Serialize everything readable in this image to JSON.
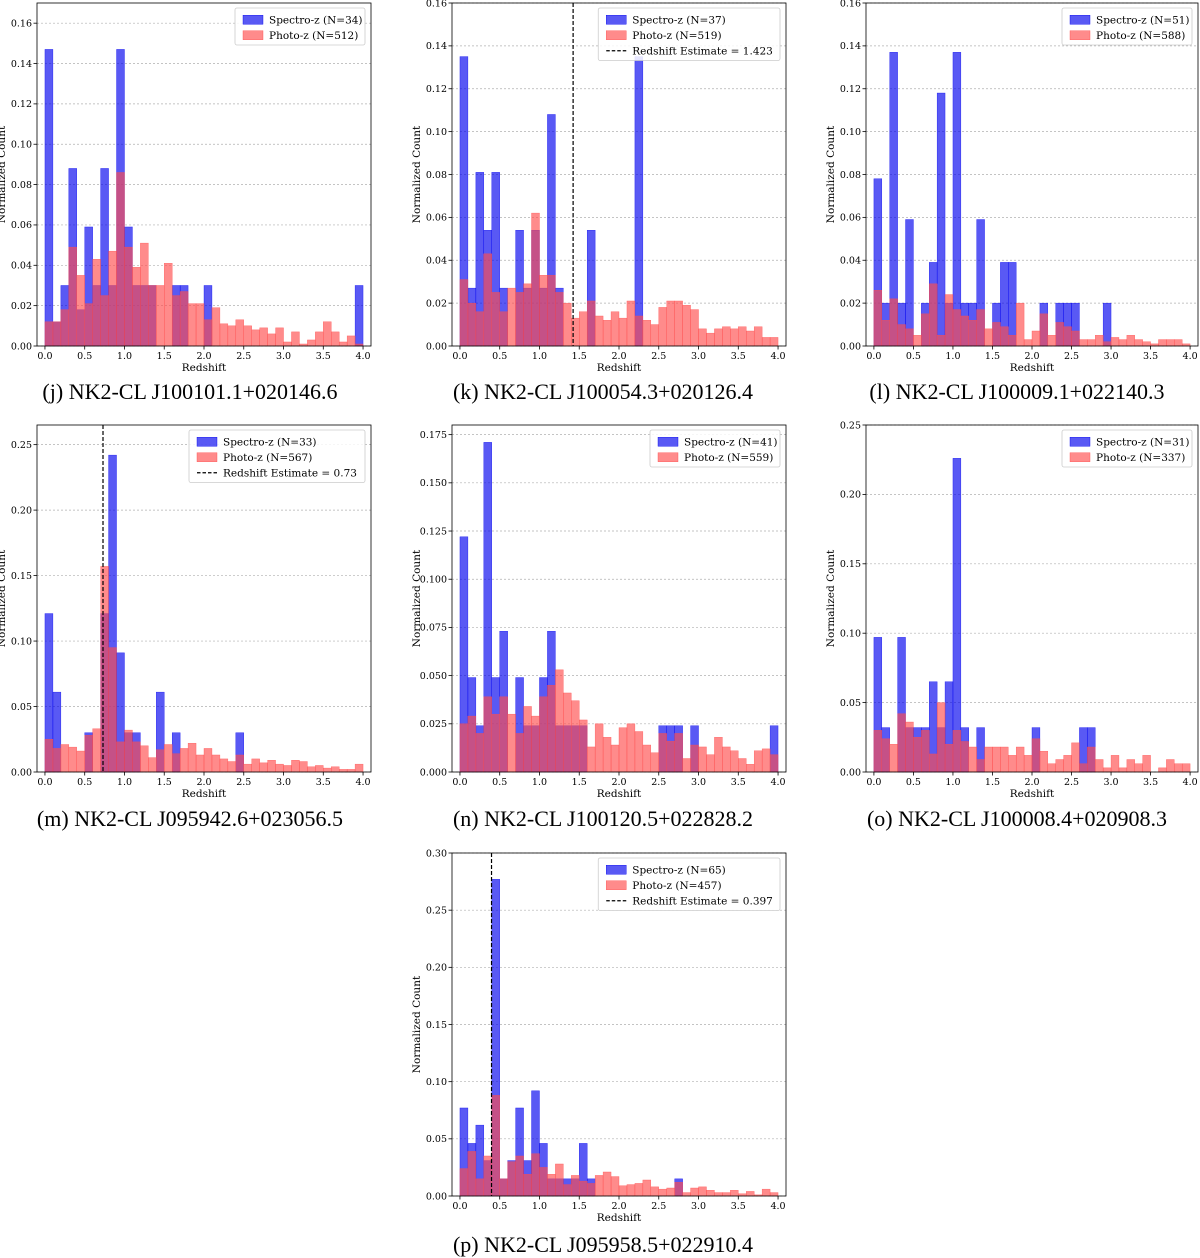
{
  "chart_data": [
    {
      "type": "bar",
      "caption": "(j) NK2-CL J100101.1+020146.6",
      "xlabel": "Redshift",
      "ylabel": "Normalized Count",
      "xlim": [
        -0.1,
        4.1
      ],
      "ylim": [
        0,
        0.17
      ],
      "xticks": [
        "0.0",
        "0.5",
        "1.0",
        "1.5",
        "2.0",
        "2.5",
        "3.0",
        "3.5",
        "4.0"
      ],
      "yticks": [
        "0.00",
        "0.02",
        "0.04",
        "0.06",
        "0.08",
        "0.10",
        "0.12",
        "0.14",
        "0.16"
      ],
      "grid": "horizontal",
      "legend_position": "top-right",
      "series": [
        {
          "name": "Spectro-z (N=34)",
          "color": "#0000ee",
          "bin_width": 0.1,
          "bin_start": 0.0,
          "values": [
            0.147,
            0.012,
            0.03,
            0.088,
            0.018,
            0.059,
            0.03,
            0.088,
            0.03,
            0.147,
            0.059,
            0.03,
            0.03,
            0.03,
            0.0,
            0.0,
            0.03,
            0.03,
            0.0,
            0.0,
            0.03,
            0.0,
            0.0,
            0.0,
            0.0,
            0.0,
            0.0,
            0.0,
            0.0,
            0.0,
            0.0,
            0.0,
            0.0,
            0.0,
            0.0,
            0.0,
            0.0,
            0.0,
            0.0,
            0.03
          ]
        },
        {
          "name": "Photo-z (N=512)",
          "color": "#ff4d4d",
          "bin_width": 0.1,
          "bin_start": 0.0,
          "values": [
            0.012,
            0.012,
            0.018,
            0.049,
            0.035,
            0.021,
            0.043,
            0.025,
            0.047,
            0.086,
            0.049,
            0.039,
            0.051,
            0.03,
            0.03,
            0.041,
            0.025,
            0.027,
            0.021,
            0.021,
            0.013,
            0.019,
            0.011,
            0.01,
            0.013,
            0.01,
            0.008,
            0.009,
            0.006,
            0.009,
            0.002,
            0.007,
            0.001,
            0.003,
            0.007,
            0.012,
            0.007,
            0.002,
            0.005,
            0.001
          ]
        }
      ]
    },
    {
      "type": "bar",
      "caption": "(k) NK2-CL J100054.3+020126.4",
      "xlabel": "Redshift",
      "ylabel": "Normalized Count",
      "xlim": [
        -0.1,
        4.1
      ],
      "ylim": [
        0,
        0.16
      ],
      "xticks": [
        "0.0",
        "0.5",
        "1.0",
        "1.5",
        "2.0",
        "2.5",
        "3.0",
        "3.5",
        "4.0"
      ],
      "yticks": [
        "0.00",
        "0.02",
        "0.04",
        "0.06",
        "0.08",
        "0.10",
        "0.12",
        "0.14",
        "0.16"
      ],
      "grid": "horizontal",
      "legend_position": "top-right",
      "vline": {
        "x": 1.423,
        "label": "Redshift Estimate = 1.423"
      },
      "series": [
        {
          "name": "Spectro-z (N=37)",
          "color": "#0000ee",
          "bin_width": 0.1,
          "bin_start": 0.0,
          "values": [
            0.135,
            0.027,
            0.081,
            0.054,
            0.081,
            0.027,
            0.0,
            0.054,
            0.027,
            0.054,
            0.027,
            0.108,
            0.027,
            0.0,
            0.0,
            0.0,
            0.054,
            0.0,
            0.0,
            0.0,
            0.0,
            0.0,
            0.135,
            0.0,
            0.0,
            0.0,
            0.0,
            0.0,
            0.0,
            0.0,
            0.0,
            0.0,
            0.0,
            0.0,
            0.0,
            0.0,
            0.0,
            0.0,
            0.0,
            0.0
          ]
        },
        {
          "name": "Photo-z (N=519)",
          "color": "#ff4d4d",
          "bin_width": 0.1,
          "bin_start": 0.0,
          "values": [
            0.031,
            0.02,
            0.016,
            0.043,
            0.025,
            0.016,
            0.027,
            0.025,
            0.029,
            0.062,
            0.033,
            0.033,
            0.025,
            0.02,
            0.013,
            0.016,
            0.021,
            0.014,
            0.012,
            0.016,
            0.013,
            0.021,
            0.014,
            0.012,
            0.01,
            0.018,
            0.021,
            0.021,
            0.019,
            0.017,
            0.008,
            0.006,
            0.008,
            0.009,
            0.008,
            0.009,
            0.007,
            0.009,
            0.004,
            0.004
          ]
        }
      ]
    },
    {
      "type": "bar",
      "caption": "(l) NK2-CL J100009.1+022140.3",
      "xlabel": "Redshift",
      "ylabel": "Normalized Count",
      "xlim": [
        -0.1,
        4.1
      ],
      "ylim": [
        0,
        0.16
      ],
      "xticks": [
        "0.0",
        "0.5",
        "1.0",
        "1.5",
        "2.0",
        "2.5",
        "3.0",
        "3.5",
        "4.0"
      ],
      "yticks": [
        "0.00",
        "0.02",
        "0.04",
        "0.06",
        "0.08",
        "0.10",
        "0.12",
        "0.14",
        "0.16"
      ],
      "grid": "horizontal",
      "legend_position": "top-right",
      "series": [
        {
          "name": "Spectro-z (N=51)",
          "color": "#0000ee",
          "bin_width": 0.1,
          "bin_start": 0.0,
          "values": [
            0.078,
            0.02,
            0.137,
            0.02,
            0.059,
            0.0,
            0.02,
            0.039,
            0.118,
            0.02,
            0.137,
            0.02,
            0.02,
            0.059,
            0.0,
            0.02,
            0.039,
            0.039,
            0.0,
            0.0,
            0.0,
            0.02,
            0.0,
            0.02,
            0.02,
            0.02,
            0.0,
            0.0,
            0.0,
            0.02,
            0.0,
            0.0,
            0.0,
            0.0,
            0.0,
            0.0,
            0.0,
            0.0,
            0.0,
            0.0
          ]
        },
        {
          "name": "Photo-z (N=588)",
          "color": "#ff4d4d",
          "bin_width": 0.1,
          "bin_start": 0.0,
          "values": [
            0.026,
            0.012,
            0.022,
            0.01,
            0.008,
            0.005,
            0.015,
            0.029,
            0.005,
            0.024,
            0.017,
            0.014,
            0.012,
            0.017,
            0.008,
            0.011,
            0.009,
            0.005,
            0.02,
            0.003,
            0.007,
            0.015,
            0.005,
            0.011,
            0.009,
            0.007,
            0.003,
            0.003,
            0.005,
            0.002,
            0.004,
            0.003,
            0.005,
            0.003,
            0.002,
            0.001,
            0.003,
            0.003,
            0.003,
            0.001
          ]
        }
      ]
    },
    {
      "type": "bar",
      "caption": "(m) NK2-CL J095942.6+023056.5",
      "xlabel": "Redshift",
      "ylabel": "Normalized Count",
      "xlim": [
        -0.1,
        4.1
      ],
      "ylim": [
        0,
        0.265
      ],
      "xticks": [
        "0.0",
        "0.5",
        "1.0",
        "1.5",
        "2.0",
        "2.5",
        "3.0",
        "3.5",
        "4.0"
      ],
      "yticks": [
        "0.00",
        "0.05",
        "0.10",
        "0.15",
        "0.20",
        "0.25"
      ],
      "grid": "horizontal",
      "legend_position": "top-right",
      "vline": {
        "x": 0.73,
        "label": "Redshift Estimate = 0.73"
      },
      "series": [
        {
          "name": "Spectro-z (N=33)",
          "color": "#0000ee",
          "bin_width": 0.1,
          "bin_start": 0.0,
          "values": [
            0.121,
            0.061,
            0.0,
            0.0,
            0.0,
            0.03,
            0.0,
            0.121,
            0.242,
            0.091,
            0.03,
            0.03,
            0.0,
            0.0,
            0.061,
            0.0,
            0.03,
            0.0,
            0.0,
            0.0,
            0.0,
            0.0,
            0.0,
            0.0,
            0.03,
            0.0,
            0.0,
            0.0,
            0.0,
            0.0,
            0.0,
            0.0,
            0.0,
            0.0,
            0.0,
            0.0,
            0.0,
            0.0,
            0.0,
            0.0
          ]
        },
        {
          "name": "Photo-z (N=567)",
          "color": "#ff4d4d",
          "bin_width": 0.1,
          "bin_start": 0.0,
          "values": [
            0.025,
            0.018,
            0.021,
            0.019,
            0.016,
            0.028,
            0.033,
            0.157,
            0.095,
            0.023,
            0.032,
            0.023,
            0.02,
            0.011,
            0.017,
            0.021,
            0.014,
            0.018,
            0.022,
            0.013,
            0.018,
            0.013,
            0.01,
            0.008,
            0.013,
            0.006,
            0.01,
            0.007,
            0.009,
            0.006,
            0.005,
            0.009,
            0.008,
            0.004,
            0.005,
            0.003,
            0.004,
            0.002,
            0.002,
            0.006
          ]
        }
      ]
    },
    {
      "type": "bar",
      "caption": "(n) NK2-CL J100120.5+022828.2",
      "xlabel": "Redshift",
      "ylabel": "Normalized Count",
      "xlim": [
        -0.1,
        4.1
      ],
      "ylim": [
        0,
        0.18
      ],
      "xticks": [
        "0.0",
        "0.5",
        "1.0",
        "1.5",
        "2.0",
        "2.5",
        "3.0",
        "3.5",
        "4.0"
      ],
      "yticks": [
        "0.000",
        "0.025",
        "0.050",
        "0.075",
        "0.100",
        "0.125",
        "0.150",
        "0.175"
      ],
      "grid": "horizontal",
      "legend_position": "top-right",
      "series": [
        {
          "name": "Spectro-z (N=41)",
          "color": "#0000ee",
          "bin_width": 0.1,
          "bin_start": 0.0,
          "values": [
            0.122,
            0.049,
            0.024,
            0.171,
            0.049,
            0.073,
            0.0,
            0.049,
            0.024,
            0.024,
            0.049,
            0.073,
            0.024,
            0.024,
            0.024,
            0.024,
            0.0,
            0.0,
            0.0,
            0.0,
            0.0,
            0.0,
            0.0,
            0.0,
            0.0,
            0.024,
            0.024,
            0.024,
            0.0,
            0.024,
            0.0,
            0.0,
            0.0,
            0.0,
            0.0,
            0.0,
            0.0,
            0.0,
            0.0,
            0.024
          ]
        },
        {
          "name": "Photo-z (N=559)",
          "color": "#ff4d4d",
          "bin_width": 0.1,
          "bin_start": 0.0,
          "values": [
            0.025,
            0.029,
            0.02,
            0.039,
            0.03,
            0.039,
            0.03,
            0.02,
            0.034,
            0.029,
            0.039,
            0.045,
            0.053,
            0.041,
            0.037,
            0.027,
            0.013,
            0.025,
            0.018,
            0.014,
            0.023,
            0.025,
            0.021,
            0.014,
            0.01,
            0.02,
            0.016,
            0.02,
            0.007,
            0.014,
            0.013,
            0.009,
            0.018,
            0.013,
            0.011,
            0.007,
            0.004,
            0.011,
            0.012,
            0.009
          ]
        }
      ]
    },
    {
      "type": "bar",
      "caption": "(o) NK2-CL J100008.4+020908.3",
      "xlabel": "Redshift",
      "ylabel": "Normalized Count",
      "xlim": [
        -0.1,
        4.1
      ],
      "ylim": [
        0,
        0.25
      ],
      "xticks": [
        "0.0",
        "0.5",
        "1.0",
        "1.5",
        "2.0",
        "2.5",
        "3.0",
        "3.5",
        "4.0"
      ],
      "yticks": [
        "0.00",
        "0.05",
        "0.10",
        "0.15",
        "0.20",
        "0.25"
      ],
      "grid": "horizontal",
      "legend_position": "top-right",
      "series": [
        {
          "name": "Spectro-z (N=31)",
          "color": "#0000ee",
          "bin_width": 0.1,
          "bin_start": 0.0,
          "values": [
            0.097,
            0.032,
            0.0,
            0.097,
            0.032,
            0.032,
            0.032,
            0.065,
            0.032,
            0.065,
            0.226,
            0.032,
            0.0,
            0.032,
            0.0,
            0.0,
            0.0,
            0.0,
            0.0,
            0.0,
            0.032,
            0.0,
            0.0,
            0.0,
            0.0,
            0.0,
            0.032,
            0.032,
            0.0,
            0.0,
            0.0,
            0.0,
            0.0,
            0.0,
            0.0,
            0.0,
            0.0,
            0.0,
            0.0,
            0.0
          ]
        },
        {
          "name": "Photo-z (N=337)",
          "color": "#ff4d4d",
          "bin_width": 0.1,
          "bin_start": 0.0,
          "values": [
            0.03,
            0.024,
            0.02,
            0.042,
            0.036,
            0.025,
            0.03,
            0.013,
            0.05,
            0.02,
            0.03,
            0.022,
            0.018,
            0.009,
            0.018,
            0.018,
            0.018,
            0.012,
            0.018,
            0.012,
            0.024,
            0.015,
            0.006,
            0.009,
            0.012,
            0.021,
            0.006,
            0.018,
            0.009,
            0.003,
            0.012,
            0.003,
            0.009,
            0.006,
            0.012,
            0.0,
            0.003,
            0.009,
            0.006,
            0.006
          ]
        }
      ]
    },
    {
      "type": "bar",
      "caption": "(p) NK2-CL J095958.5+022910.4",
      "xlabel": "Redshift",
      "ylabel": "Normalized Count",
      "xlim": [
        -0.1,
        4.1
      ],
      "ylim": [
        0,
        0.3
      ],
      "xticks": [
        "0.0",
        "0.5",
        "1.0",
        "1.5",
        "2.0",
        "2.5",
        "3.0",
        "3.5",
        "4.0"
      ],
      "yticks": [
        "0.00",
        "0.05",
        "0.10",
        "0.15",
        "0.20",
        "0.25",
        "0.30"
      ],
      "grid": "horizontal",
      "legend_position": "top-right",
      "vline": {
        "x": 0.397,
        "label": "Redshift Estimate = 0.397"
      },
      "series": [
        {
          "name": "Spectro-z (N=65)",
          "color": "#0000ee",
          "bin_width": 0.1,
          "bin_start": 0.0,
          "values": [
            0.077,
            0.046,
            0.062,
            0.031,
            0.277,
            0.015,
            0.031,
            0.077,
            0.031,
            0.092,
            0.046,
            0.015,
            0.015,
            0.015,
            0.015,
            0.046,
            0.015,
            0.0,
            0.0,
            0.0,
            0.0,
            0.0,
            0.0,
            0.0,
            0.0,
            0.0,
            0.0,
            0.015,
            0.0,
            0.0,
            0.0,
            0.0,
            0.0,
            0.0,
            0.0,
            0.0,
            0.0,
            0.0,
            0.0,
            0.0
          ]
        },
        {
          "name": "Photo-z (N=457)",
          "color": "#ff4d4d",
          "bin_width": 0.1,
          "bin_start": 0.0,
          "values": [
            0.024,
            0.039,
            0.015,
            0.035,
            0.088,
            0.015,
            0.03,
            0.035,
            0.019,
            0.037,
            0.025,
            0.019,
            0.028,
            0.01,
            0.018,
            0.013,
            0.011,
            0.018,
            0.021,
            0.017,
            0.009,
            0.01,
            0.011,
            0.014,
            0.008,
            0.006,
            0.007,
            0.012,
            0.003,
            0.007,
            0.008,
            0.005,
            0.003,
            0.003,
            0.005,
            0.002,
            0.004,
            0.001,
            0.006,
            0.003
          ]
        }
      ]
    }
  ]
}
